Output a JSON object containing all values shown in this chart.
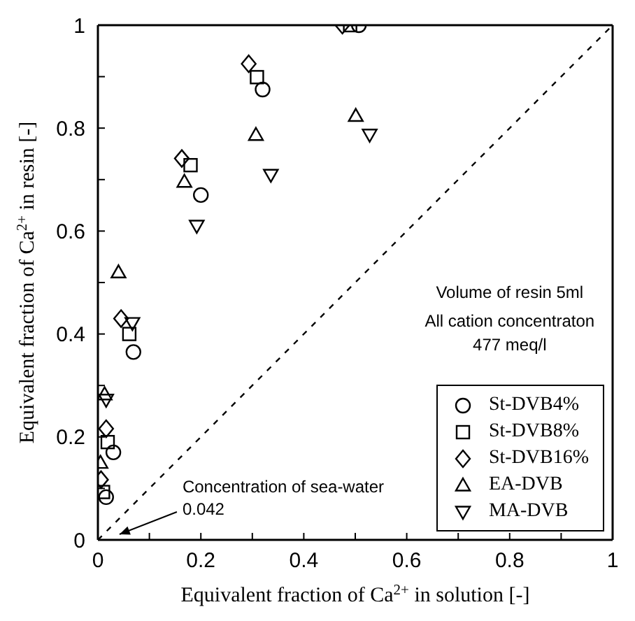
{
  "chart_data": {
    "type": "scatter",
    "xlabel": "Equivalent fraction of Ca$^{2+}$ in solution  [-]",
    "ylabel": "Equivalent fraction of Ca$^{2+}$ in resin  [-]",
    "xlim": [
      0,
      1
    ],
    "ylim": [
      0,
      1
    ],
    "xticks": [
      0,
      {
        "value": 0.1,
        "label": null
      },
      0.2,
      {
        "value": 0.3,
        "label": null
      },
      0.4,
      {
        "value": 0.5,
        "label": null
      },
      0.6,
      {
        "value": 0.7,
        "label": null
      },
      0.8,
      {
        "value": 0.9,
        "label": null
      },
      1
    ],
    "yticks": [
      0,
      {
        "value": 0.1,
        "label": null
      },
      0.2,
      {
        "value": 0.3,
        "label": null
      },
      0.4,
      {
        "value": 0.5,
        "label": null
      },
      0.6,
      {
        "value": 0.7,
        "label": null
      },
      0.8,
      {
        "value": 0.9,
        "label": null
      },
      1
    ],
    "legend": "bottom right",
    "series": [
      {
        "name": "St-DVB4%",
        "color": "#000000",
        "marker": "circle",
        "x": [
          0.016,
          0.03,
          0.069,
          0.2,
          0.32,
          0.507
        ],
        "values": [
          0.083,
          0.17,
          0.365,
          0.67,
          0.875,
          1.0
        ]
      },
      {
        "name": "St-DVB8%",
        "color": "#000000",
        "marker": "square",
        "x": [
          0.01,
          0.019,
          0.061,
          0.18,
          0.309,
          0.49
        ],
        "values": [
          0.093,
          0.19,
          0.4,
          0.728,
          0.899,
          1.0
        ]
      },
      {
        "name": "St-DVB16%",
        "color": "#000000",
        "marker": "diamond",
        "x": [
          0.006,
          0.016,
          0.045,
          0.163,
          0.293,
          0.475
        ],
        "values": [
          0.117,
          0.216,
          0.43,
          0.741,
          0.925,
          1.0
        ]
      },
      {
        "name": "EA-DVB",
        "color": "#000000",
        "marker": "triangle",
        "x": [
          0.005,
          0.013,
          0.04,
          0.168,
          0.307,
          0.501
        ],
        "values": [
          0.15,
          0.283,
          0.52,
          0.696,
          0.787,
          0.824
        ]
      },
      {
        "name": "MA-DVB",
        "color": "#000000",
        "marker": "triangle-down",
        "x": [
          0.016,
          0.067,
          0.192,
          0.336,
          0.528
        ],
        "values": [
          0.272,
          0.421,
          0.61,
          0.709,
          0.787
        ]
      },
      {
        "type": "line",
        "color": "#000000",
        "marker": "none",
        "line_style": "dashed",
        "x": [
          0,
          1
        ],
        "values": [
          0,
          1
        ]
      }
    ],
    "annotations": [
      "Concentration of sea-water\n0.042",
      "Volume of resin  5ml",
      "All cation concentraton\n477 meq/l"
    ]
  }
}
